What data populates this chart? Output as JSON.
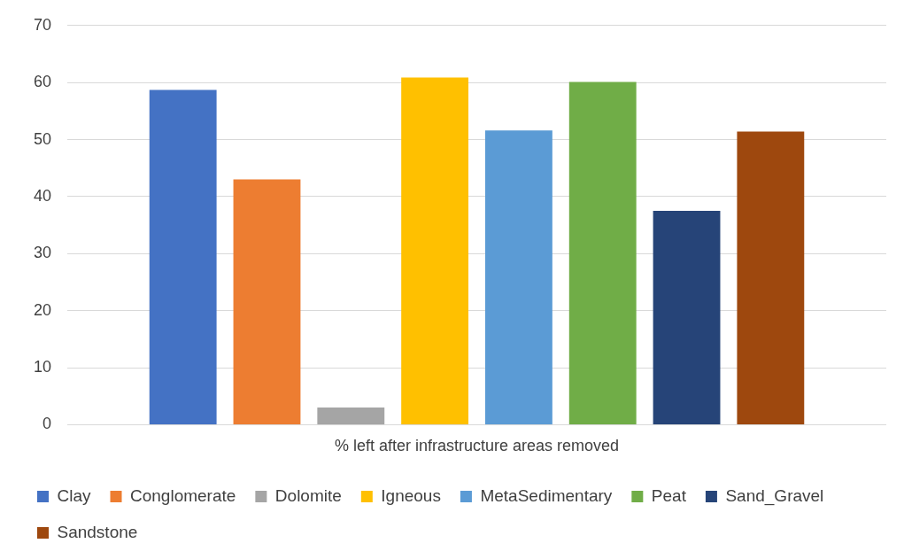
{
  "chart_data": {
    "type": "bar",
    "categories": [
      "% left after infrastructure areas removed"
    ],
    "series": [
      {
        "name": "Clay",
        "color": "#4472c4",
        "values": [
          58.7
        ]
      },
      {
        "name": "Conglomerate",
        "color": "#ed7d31",
        "values": [
          43.0
        ]
      },
      {
        "name": "Dolomite",
        "color": "#a5a5a5",
        "values": [
          3.0
        ]
      },
      {
        "name": "Igneous",
        "color": "#ffc000",
        "values": [
          60.9
        ]
      },
      {
        "name": "MetaSedimentary",
        "color": "#5b9bd5",
        "values": [
          51.6
        ]
      },
      {
        "name": "Peat",
        "color": "#70ad47",
        "values": [
          60.1
        ]
      },
      {
        "name": "Sand_Gravel",
        "color": "#264478",
        "values": [
          37.5
        ]
      },
      {
        "name": "Sandstone",
        "color": "#9e480e",
        "values": [
          51.4
        ]
      }
    ],
    "ylim": [
      0,
      70
    ],
    "yticks": [
      0,
      10,
      20,
      30,
      40,
      50,
      60,
      70
    ],
    "grid": "y",
    "legend": "bottom"
  }
}
